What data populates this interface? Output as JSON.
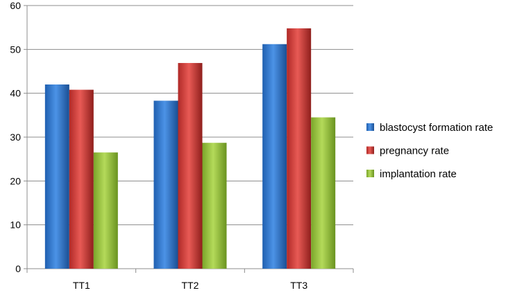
{
  "chart_data": {
    "type": "bar",
    "title": "",
    "xlabel": "",
    "ylabel": "",
    "categories": [
      "TT1",
      "TT2",
      "TT3"
    ],
    "ylim": [
      0,
      60
    ],
    "yticks": [
      0,
      10,
      20,
      30,
      40,
      50,
      60
    ],
    "grid": true,
    "legend_position": "right",
    "series": [
      {
        "name": "blastocyst formation rate",
        "values": [
          42,
          38.3,
          51.2
        ],
        "color": "#3a7fd0"
      },
      {
        "name": "pregnancy rate",
        "values": [
          40.8,
          46.9,
          54.8
        ],
        "color": "#d04541"
      },
      {
        "name": "implantation rate",
        "values": [
          26.5,
          28.7,
          34.5
        ],
        "color": "#9cc63e"
      }
    ]
  }
}
